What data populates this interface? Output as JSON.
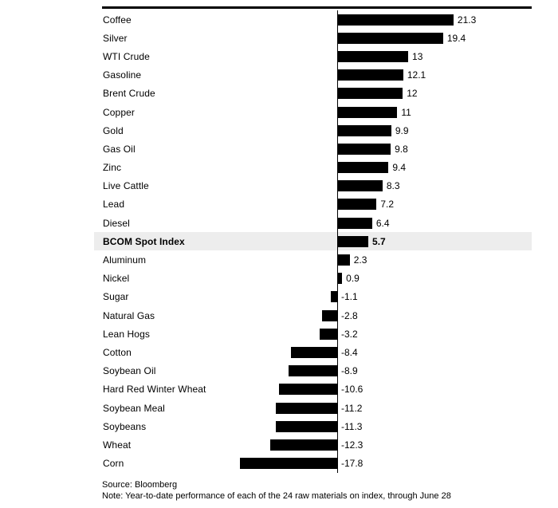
{
  "chart_data": {
    "type": "bar",
    "orientation": "horizontal",
    "title": "",
    "categories": [
      "Coffee",
      "Silver",
      "WTI Crude",
      "Gasoline",
      "Brent Crude",
      "Copper",
      "Gold",
      "Gas Oil",
      "Zinc",
      "Live Cattle",
      "Lead",
      "Diesel",
      "BCOM Spot Index",
      "Aluminum",
      "Nickel",
      "Sugar",
      "Natural Gas",
      "Lean Hogs",
      "Cotton",
      "Soybean Oil",
      "Hard Red Winter Wheat",
      "Soybean Meal",
      "Soybeans",
      "Wheat",
      "Corn"
    ],
    "values": [
      21.3,
      19.4,
      13,
      12.1,
      12,
      11,
      9.9,
      9.8,
      9.4,
      8.3,
      7.2,
      6.4,
      5.7,
      2.3,
      0.9,
      -1.1,
      -2.8,
      -3.2,
      -8.4,
      -8.9,
      -10.6,
      -11.2,
      -11.3,
      -12.3,
      -17.8
    ],
    "highlight_category": "BCOM Spot Index",
    "value_labels_shown": true,
    "xlim": [
      -21.5,
      35.6
    ],
    "grid": false,
    "legend": false,
    "xlabel": "",
    "ylabel": ""
  },
  "colors": {
    "bar": "#000000",
    "highlight_row_bg": "#ededed",
    "text": "#000000",
    "top_border": "#000000"
  },
  "footer": {
    "source": "Source: Bloomberg",
    "note": "Note: Year-to-date performance of each of the 24 raw materials on index, through June 28"
  }
}
